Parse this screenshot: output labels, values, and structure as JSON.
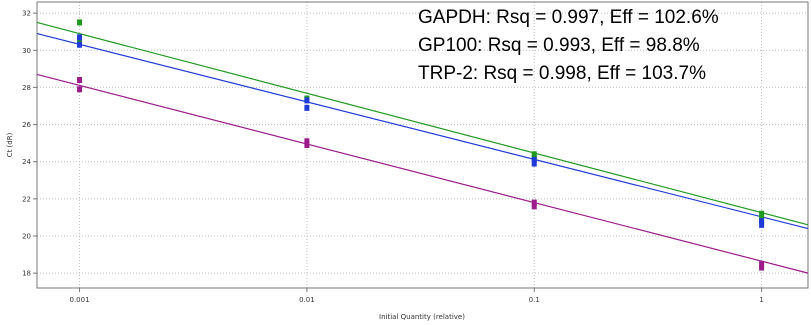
{
  "chart_data": {
    "type": "scatter",
    "x_scale": "log",
    "xlabel": "Initial Quantity (relative)",
    "ylabel": "Ct (dR)",
    "xlim": [
      0.00065,
      1.6
    ],
    "ylim": [
      17.2,
      32.6
    ],
    "grid": true,
    "x_ticks": [
      {
        "value": 0.001,
        "label": "0.001"
      },
      {
        "value": 0.01,
        "label": "0.01"
      },
      {
        "value": 0.1,
        "label": "0.1"
      },
      {
        "value": 1,
        "label": "1"
      }
    ],
    "y_ticks": [
      {
        "value": 18,
        "label": "18"
      },
      {
        "value": 20,
        "label": "20"
      },
      {
        "value": 22,
        "label": "22"
      },
      {
        "value": 24,
        "label": "24"
      },
      {
        "value": 26,
        "label": "26"
      },
      {
        "value": 28,
        "label": "28"
      },
      {
        "value": 30,
        "label": "30"
      },
      {
        "value": 32,
        "label": "32"
      }
    ],
    "annotations": [
      "GAPDH: Rsq = 0.997, Eff = 102.6%",
      "GP100: Rsq = 0.993, Eff = 98.8%",
      "TRP-2: Rsq = 0.998, Eff = 103.7%"
    ],
    "series": [
      {
        "color": "#1f9a1f",
        "points": [
          [
            0.001,
            31.5
          ],
          [
            0.001,
            30.6
          ],
          [
            0.01,
            27.4
          ],
          [
            0.1,
            24.4
          ],
          [
            0.1,
            24.2
          ],
          [
            1,
            21.2
          ],
          [
            1,
            20.9
          ]
        ],
        "fit": [
          [
            0.00065,
            31.5
          ],
          [
            1.6,
            20.6
          ]
        ]
      },
      {
        "color": "#1f3ad6",
        "points": [
          [
            0.001,
            30.7
          ],
          [
            0.001,
            30.3
          ],
          [
            0.01,
            27.3
          ],
          [
            0.01,
            26.9
          ],
          [
            0.1,
            24.1
          ],
          [
            0.1,
            23.9
          ],
          [
            1,
            20.8
          ],
          [
            1,
            20.6
          ]
        ],
        "fit": [
          [
            0.00065,
            30.9
          ],
          [
            1.6,
            20.4
          ]
        ]
      },
      {
        "color": "#9c1c8c",
        "points": [
          [
            0.001,
            28.4
          ],
          [
            0.001,
            27.9
          ],
          [
            0.01,
            25.1
          ],
          [
            0.01,
            24.9
          ],
          [
            0.1,
            21.8
          ],
          [
            0.1,
            21.6
          ],
          [
            1,
            18.5
          ],
          [
            1,
            18.3
          ]
        ],
        "fit": [
          [
            0.00065,
            28.7
          ],
          [
            1.6,
            18.0
          ]
        ]
      }
    ]
  }
}
